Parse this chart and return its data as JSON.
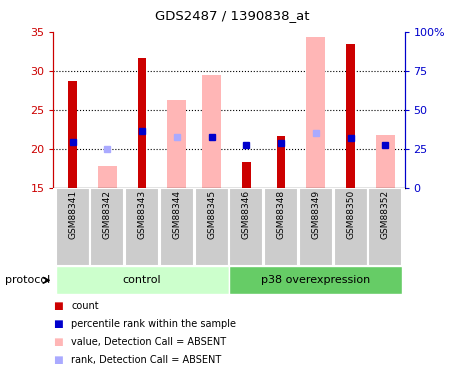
{
  "title": "GDS2487 / 1390838_at",
  "samples": [
    "GSM88341",
    "GSM88342",
    "GSM88343",
    "GSM88344",
    "GSM88345",
    "GSM88346",
    "GSM88348",
    "GSM88349",
    "GSM88350",
    "GSM88352"
  ],
  "red_bars": [
    28.7,
    null,
    31.6,
    null,
    null,
    18.3,
    21.6,
    null,
    33.5,
    null
  ],
  "pink_bars": [
    null,
    17.7,
    null,
    26.2,
    29.5,
    null,
    null,
    34.3,
    null,
    21.7
  ],
  "blue_squares": [
    20.9,
    null,
    22.3,
    null,
    21.5,
    20.5,
    20.7,
    null,
    21.3,
    20.5
  ],
  "light_blue_squares": [
    null,
    20.0,
    null,
    21.5,
    null,
    null,
    null,
    22.0,
    null,
    null
  ],
  "ylim": [
    15,
    35
  ],
  "y_left_ticks": [
    15,
    20,
    25,
    30,
    35
  ],
  "y_right_ticks": [
    0,
    25,
    50,
    75,
    100
  ],
  "y_right_labels": [
    "0",
    "25",
    "50",
    "75",
    "100%"
  ],
  "control_label": "control",
  "overexp_label": "p38 overexpression",
  "protocol_label": "protocol",
  "legend_colors": [
    "#cc0000",
    "#0000cc",
    "#ffb6b6",
    "#aaaaff"
  ],
  "legend_labels": [
    "count",
    "percentile rank within the sample",
    "value, Detection Call = ABSENT",
    "rank, Detection Call = ABSENT"
  ],
  "axis_color_left": "#cc0000",
  "axis_color_right": "#0000cc",
  "control_bg": "#ccffcc",
  "overexp_bg": "#66cc66",
  "label_area_bg": "#cccccc",
  "red_bar_width": 0.25,
  "pink_bar_width": 0.55
}
